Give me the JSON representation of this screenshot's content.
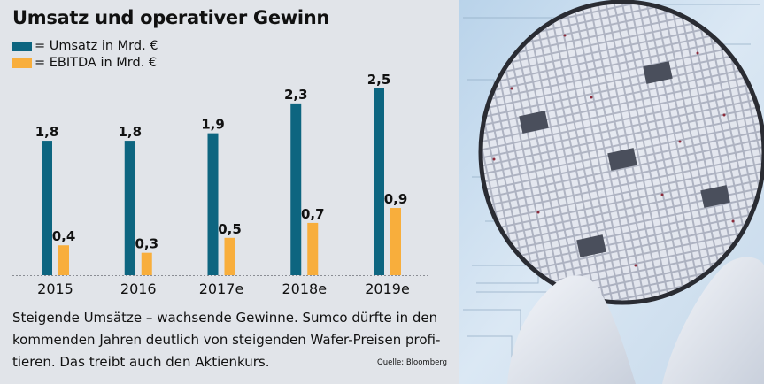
{
  "colors": {
    "umsatz": "#0d6580",
    "ebitda": "#f8ae3c",
    "panel_bg": "#e1e4e9"
  },
  "chart_data": {
    "type": "bar",
    "title": "Umsatz und operativer Gewinn",
    "categories": [
      "2015",
      "2016",
      "2017e",
      "2018e",
      "2019e"
    ],
    "series": [
      {
        "name": "= Umsatz in Mrd. €",
        "values": [
          1.8,
          1.8,
          1.9,
          2.3,
          2.5
        ],
        "labels": [
          "1,8",
          "1,8",
          "1,9",
          "2,3",
          "2,5"
        ]
      },
      {
        "name": "= EBITDA in Mrd. €",
        "values": [
          0.4,
          0.3,
          0.5,
          0.7,
          0.9
        ],
        "labels": [
          "0,4",
          "0,3",
          "0,5",
          "0,7",
          "0,9"
        ]
      }
    ],
    "xlabel": "",
    "ylabel": "",
    "ylim": [
      0,
      2.5
    ],
    "grid": false,
    "legend": "top-left"
  },
  "caption": "Steigende Umsätze – wachsende Gewinne. Sumco dürfte in den kommenden Jahren deutlich von steigenden Wafer-Preisen profi­tieren. Das treibt auch den Aktienkurs.",
  "source": "Quelle: Bloomberg",
  "photo": {
    "icon": "silicon-wafer-photo"
  }
}
